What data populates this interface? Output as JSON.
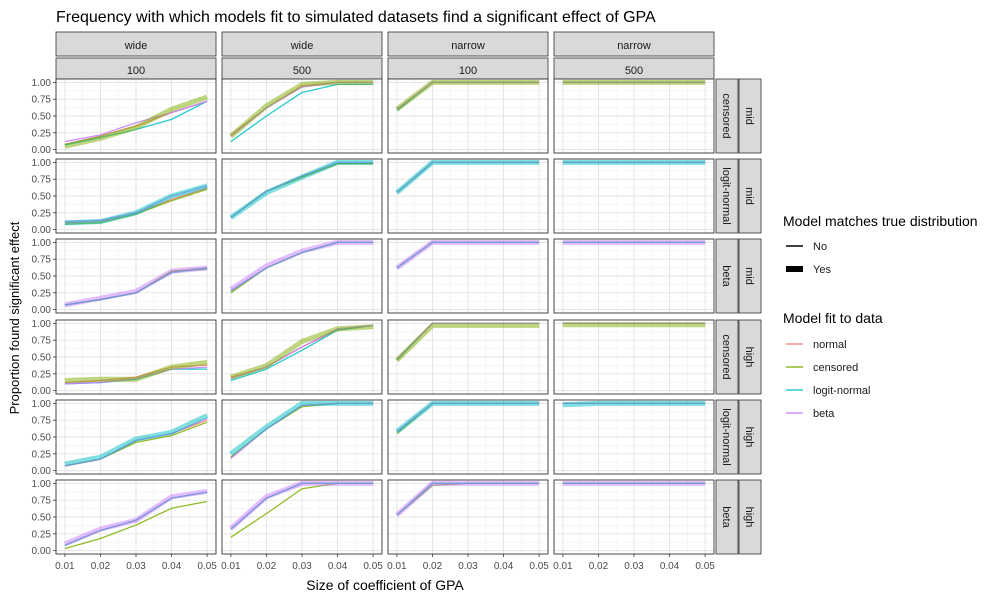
{
  "chart_data": {
    "type": "line",
    "title": "Frequency with which models fit to simulated datasets find a significant effect of GPA",
    "xlabel": "Size of coefficient of GPA",
    "ylabel": "Proportion found significant effect",
    "x": [
      0.01,
      0.02,
      0.03,
      0.04,
      0.05
    ],
    "x_tick_labels": [
      "0.01",
      "0.02",
      "0.03",
      "0.04",
      "0.05"
    ],
    "ylim": [
      0,
      1
    ],
    "y_tick_labels": [
      "0.00",
      "0.25",
      "0.50",
      "0.75",
      "1.00"
    ],
    "grid": true,
    "legend_placement": "right",
    "facet_columns": [
      {
        "strip_top": "wide",
        "strip_bottom": "100"
      },
      {
        "strip_top": "wide",
        "strip_bottom": "500"
      },
      {
        "strip_top": "narrow",
        "strip_bottom": "100"
      },
      {
        "strip_top": "narrow",
        "strip_bottom": "500"
      }
    ],
    "facet_rows": [
      {
        "strip_inner": "censored",
        "strip_outer": "mid",
        "true_dist": "censored"
      },
      {
        "strip_inner": "logit-normal",
        "strip_outer": "mid",
        "true_dist": "logit-normal"
      },
      {
        "strip_inner": "beta",
        "strip_outer": "mid",
        "true_dist": "beta"
      },
      {
        "strip_inner": "censored",
        "strip_outer": "high",
        "true_dist": "censored"
      },
      {
        "strip_inner": "logit-normal",
        "strip_outer": "high",
        "true_dist": "logit-normal"
      },
      {
        "strip_inner": "beta",
        "strip_outer": "high",
        "true_dist": "beta"
      }
    ],
    "legend_size": {
      "title": "Model matches true distribution",
      "entries": [
        "No",
        "Yes"
      ]
    },
    "legend_color": {
      "title": "Model fit to data",
      "entries": [
        "normal",
        "censored",
        "logit-normal",
        "beta"
      ]
    },
    "model_colors": {
      "normal": "#F8766D",
      "censored": "#7CAE00",
      "logit-normal": "#00BFC4",
      "beta": "#C77CFF"
    },
    "panels": [
      [
        {
          "normal": [
            0.08,
            0.2,
            0.35,
            0.55,
            0.72
          ],
          "censored": [
            0.05,
            0.17,
            0.33,
            0.6,
            0.78
          ],
          "logit-normal": [
            0.07,
            0.18,
            0.3,
            0.45,
            0.72
          ],
          "beta": [
            0.12,
            0.22,
            0.4,
            0.55,
            0.72
          ]
        },
        {
          "normal": [
            0.22,
            0.62,
            0.95,
            1.0,
            1.0
          ],
          "censored": [
            0.2,
            0.65,
            0.97,
            1.0,
            1.0
          ],
          "logit-normal": [
            0.12,
            0.5,
            0.85,
            0.97,
            0.97
          ],
          "beta": [
            0.2,
            0.62,
            0.93,
            1.0,
            1.0
          ]
        },
        {
          "normal": [
            0.6,
            1.0,
            1.0,
            1.0,
            1.0
          ],
          "censored": [
            0.6,
            1.0,
            1.0,
            1.0,
            1.0
          ],
          "logit-normal": [
            0.58,
            1.0,
            1.0,
            1.0,
            1.0
          ],
          "beta": [
            0.6,
            1.0,
            1.0,
            1.0,
            1.0
          ]
        },
        {
          "normal": [
            1.0,
            1.0,
            1.0,
            1.0,
            1.0
          ],
          "censored": [
            1.0,
            1.0,
            1.0,
            1.0,
            1.0
          ],
          "logit-normal": [
            1.0,
            1.0,
            1.0,
            1.0,
            1.0
          ],
          "beta": [
            1.0,
            1.0,
            1.0,
            1.0,
            1.0
          ]
        }
      ],
      [
        {
          "normal": [
            0.1,
            0.12,
            0.25,
            0.45,
            0.62
          ],
          "censored": [
            0.08,
            0.1,
            0.23,
            0.43,
            0.6
          ],
          "logit-normal": [
            0.1,
            0.12,
            0.25,
            0.5,
            0.65
          ],
          "beta": [
            0.12,
            0.14,
            0.25,
            0.5,
            0.65
          ]
        },
        {
          "normal": [
            0.18,
            0.57,
            0.78,
            0.98,
            0.98
          ],
          "censored": [
            0.18,
            0.57,
            0.78,
            0.98,
            0.98
          ],
          "logit-normal": [
            0.18,
            0.55,
            0.78,
            1.0,
            1.0
          ],
          "beta": [
            0.18,
            0.57,
            0.8,
            1.0,
            1.0
          ]
        },
        {
          "normal": [
            0.55,
            1.0,
            1.0,
            1.0,
            1.0
          ],
          "censored": [
            0.55,
            1.0,
            1.0,
            1.0,
            1.0
          ],
          "logit-normal": [
            0.55,
            1.0,
            1.0,
            1.0,
            1.0
          ],
          "beta": [
            0.55,
            1.0,
            1.0,
            1.0,
            1.0
          ]
        },
        {
          "normal": [
            1.0,
            1.0,
            1.0,
            1.0,
            1.0
          ],
          "censored": [
            1.0,
            1.0,
            1.0,
            1.0,
            1.0
          ],
          "logit-normal": [
            1.0,
            1.0,
            1.0,
            1.0,
            1.0
          ],
          "beta": [
            1.0,
            1.0,
            1.0,
            1.0,
            1.0
          ]
        }
      ],
      [
        {
          "normal": [
            0.07,
            0.15,
            0.25,
            0.57,
            0.62
          ],
          "censored": [
            0.07,
            0.15,
            0.25,
            0.57,
            0.6
          ],
          "logit-normal": [
            0.07,
            0.15,
            0.25,
            0.55,
            0.62
          ],
          "beta": [
            0.07,
            0.17,
            0.27,
            0.57,
            0.62
          ]
        },
        {
          "normal": [
            0.28,
            0.62,
            0.85,
            1.0,
            1.0
          ],
          "censored": [
            0.25,
            0.62,
            0.85,
            1.0,
            1.0
          ],
          "logit-normal": [
            0.28,
            0.62,
            0.85,
            1.0,
            1.0
          ],
          "beta": [
            0.3,
            0.65,
            0.87,
            1.0,
            1.0
          ]
        },
        {
          "normal": [
            0.62,
            1.0,
            1.0,
            1.0,
            1.0
          ],
          "censored": [
            0.62,
            1.0,
            1.0,
            1.0,
            1.0
          ],
          "logit-normal": [
            0.62,
            1.0,
            1.0,
            1.0,
            1.0
          ],
          "beta": [
            0.62,
            1.0,
            1.0,
            1.0,
            1.0
          ]
        },
        {
          "normal": [
            1.0,
            1.0,
            1.0,
            1.0,
            1.0
          ],
          "censored": [
            1.0,
            1.0,
            1.0,
            1.0,
            1.0
          ],
          "logit-normal": [
            1.0,
            1.0,
            1.0,
            1.0,
            1.0
          ],
          "beta": [
            1.0,
            1.0,
            1.0,
            1.0,
            1.0
          ]
        }
      ],
      [
        {
          "normal": [
            0.12,
            0.15,
            0.2,
            0.35,
            0.38
          ],
          "censored": [
            0.15,
            0.17,
            0.17,
            0.35,
            0.42
          ],
          "logit-normal": [
            0.1,
            0.12,
            0.17,
            0.32,
            0.32
          ],
          "beta": [
            0.1,
            0.12,
            0.18,
            0.32,
            0.35
          ]
        },
        {
          "normal": [
            0.2,
            0.35,
            0.65,
            0.9,
            0.97
          ],
          "censored": [
            0.2,
            0.37,
            0.73,
            0.92,
            0.95
          ],
          "logit-normal": [
            0.15,
            0.32,
            0.6,
            0.9,
            0.97
          ],
          "beta": [
            0.18,
            0.35,
            0.65,
            0.92,
            0.97
          ]
        },
        {
          "normal": [
            0.45,
            1.0,
            1.0,
            1.0,
            1.0
          ],
          "censored": [
            0.45,
            0.97,
            0.97,
            0.97,
            0.97
          ],
          "logit-normal": [
            0.45,
            1.0,
            1.0,
            1.0,
            1.0
          ],
          "beta": [
            0.47,
            1.0,
            1.0,
            1.0,
            1.0
          ]
        },
        {
          "normal": [
            1.0,
            1.0,
            1.0,
            1.0,
            1.0
          ],
          "censored": [
            0.98,
            0.98,
            0.98,
            0.98,
            0.98
          ],
          "logit-normal": [
            1.0,
            1.0,
            1.0,
            1.0,
            1.0
          ],
          "beta": [
            1.0,
            1.0,
            1.0,
            1.0,
            1.0
          ]
        }
      ],
      [
        {
          "normal": [
            0.07,
            0.17,
            0.45,
            0.55,
            0.75
          ],
          "censored": [
            0.07,
            0.17,
            0.42,
            0.52,
            0.72
          ],
          "logit-normal": [
            0.1,
            0.2,
            0.47,
            0.57,
            0.82
          ],
          "beta": [
            0.07,
            0.17,
            0.45,
            0.55,
            0.78
          ]
        },
        {
          "normal": [
            0.2,
            0.62,
            0.97,
            1.0,
            1.0
          ],
          "censored": [
            0.2,
            0.62,
            0.95,
            1.0,
            1.0
          ],
          "logit-normal": [
            0.25,
            0.65,
            1.0,
            1.0,
            1.0
          ],
          "beta": [
            0.18,
            0.62,
            0.97,
            1.0,
            1.0
          ]
        },
        {
          "normal": [
            0.58,
            1.0,
            1.0,
            1.0,
            1.0
          ],
          "censored": [
            0.55,
            1.0,
            1.0,
            1.0,
            1.0
          ],
          "logit-normal": [
            0.58,
            1.0,
            1.0,
            1.0,
            1.0
          ],
          "beta": [
            0.58,
            1.0,
            1.0,
            1.0,
            1.0
          ]
        },
        {
          "normal": [
            1.0,
            1.0,
            1.0,
            1.0,
            1.0
          ],
          "censored": [
            1.0,
            1.0,
            1.0,
            1.0,
            1.0
          ],
          "logit-normal": [
            0.98,
            1.0,
            1.0,
            1.0,
            1.0
          ],
          "beta": [
            1.0,
            1.0,
            1.0,
            1.0,
            1.0
          ]
        }
      ],
      [
        {
          "normal": [
            0.08,
            0.3,
            0.45,
            0.78,
            0.87
          ],
          "censored": [
            0.03,
            0.18,
            0.38,
            0.63,
            0.73
          ],
          "logit-normal": [
            0.08,
            0.3,
            0.45,
            0.78,
            0.87
          ],
          "beta": [
            0.1,
            0.32,
            0.45,
            0.8,
            0.88
          ]
        },
        {
          "normal": [
            0.32,
            0.78,
            1.0,
            1.0,
            1.0
          ],
          "censored": [
            0.2,
            0.55,
            0.92,
            1.0,
            1.0
          ],
          "logit-normal": [
            0.32,
            0.78,
            1.0,
            1.0,
            1.0
          ],
          "beta": [
            0.33,
            0.8,
            1.0,
            1.0,
            1.0
          ]
        },
        {
          "normal": [
            0.53,
            1.0,
            1.0,
            1.0,
            1.0
          ],
          "censored": [
            0.53,
            0.97,
            1.0,
            1.0,
            1.0
          ],
          "logit-normal": [
            0.53,
            1.0,
            1.0,
            1.0,
            1.0
          ],
          "beta": [
            0.53,
            1.0,
            1.0,
            1.0,
            1.0
          ]
        },
        {
          "normal": [
            1.0,
            1.0,
            1.0,
            1.0,
            1.0
          ],
          "censored": [
            1.0,
            1.0,
            1.0,
            1.0,
            1.0
          ],
          "logit-normal": [
            1.0,
            1.0,
            1.0,
            1.0,
            1.0
          ],
          "beta": [
            1.0,
            1.0,
            1.0,
            1.0,
            1.0
          ]
        }
      ]
    ]
  }
}
